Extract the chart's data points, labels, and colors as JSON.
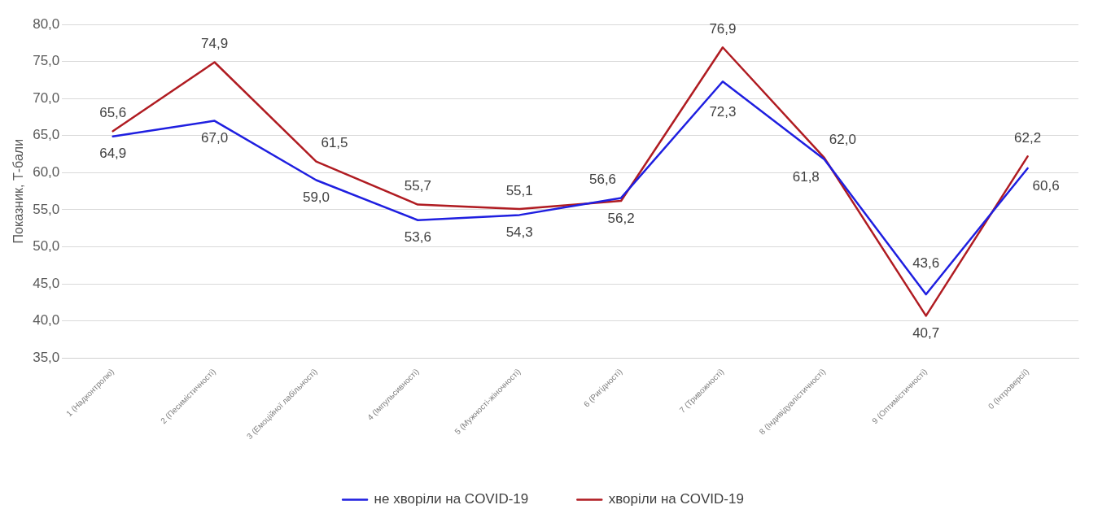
{
  "chart_data": {
    "type": "line",
    "ylabel": "Показник, Т-бали",
    "categories": [
      "1 (Надконтролю)",
      "2 (Песимістичності)",
      "3 (Емоційної лабільності)",
      "4 (Імпульсивності)",
      "5 (Мужності-жіночності)",
      "6 (Ригідності)",
      "7 (Тривожності)",
      "8 (Індивідуалістичності)",
      "9 (Оптимістичності)",
      "0 (Інтроверсії)"
    ],
    "series": [
      {
        "name": "не хворіли на COVID-19",
        "color": "#1f1fe0",
        "values": [
          64.9,
          67.0,
          59.0,
          53.6,
          54.3,
          56.6,
          72.3,
          61.8,
          43.6,
          60.6
        ],
        "value_labels": [
          "64,9",
          "67,0",
          "59,0",
          "53,6",
          "54,3",
          "56,6",
          "72,3",
          "61,8",
          "43,6",
          "60,6"
        ]
      },
      {
        "name": "хворіли на COVID-19",
        "color": "#b01c22",
        "values": [
          65.6,
          74.9,
          61.5,
          55.7,
          55.1,
          56.2,
          76.9,
          62.0,
          40.7,
          62.2
        ],
        "value_labels": [
          "65,6",
          "74,9",
          "61,5",
          "55,7",
          "55,1",
          "56,2",
          "76,9",
          "62,0",
          "40,7",
          "62,2"
        ]
      }
    ],
    "ylim": [
      35,
      80
    ],
    "yticks": [
      {
        "value": 35,
        "label": "35,0"
      },
      {
        "value": 40,
        "label": "40,0"
      },
      {
        "value": 45,
        "label": "45,0"
      },
      {
        "value": 50,
        "label": "50,0"
      },
      {
        "value": 55,
        "label": "55,0"
      },
      {
        "value": 60,
        "label": "60,0"
      },
      {
        "value": 65,
        "label": "65,0"
      },
      {
        "value": 70,
        "label": "70,0"
      },
      {
        "value": 75,
        "label": "75,0"
      },
      {
        "value": 80,
        "label": "80,0"
      }
    ],
    "grid": "y",
    "legend": "bottom",
    "marker": "none",
    "line_style": "solid"
  }
}
